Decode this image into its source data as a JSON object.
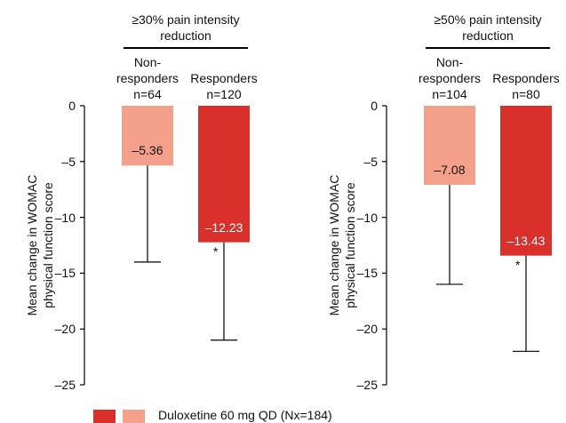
{
  "chart_data": [
    {
      "type": "bar",
      "title": "≥30% pain intensity reduction",
      "categories": [
        "Non-responders",
        "Responders"
      ],
      "sample_sizes": [
        "n=64",
        "n=120"
      ],
      "values": [
        -5.36,
        -12.23
      ],
      "value_labels": [
        "–5.36",
        "–12.23"
      ],
      "errors": [
        8.64,
        8.77
      ],
      "significance": [
        null,
        "*"
      ],
      "colors": [
        "#f5a08b",
        "#d9302c"
      ],
      "ylabel": "Mean change in WOMAC physical function score",
      "ylim": [
        -25,
        0
      ],
      "yticks": [
        0,
        {
          "value": -5,
          "label": "–5"
        },
        {
          "value": -10,
          "label": "–10"
        },
        {
          "value": -15,
          "label": "–15"
        },
        {
          "value": -20,
          "label": "–20"
        },
        {
          "value": -25,
          "label": "–25"
        }
      ]
    },
    {
      "type": "bar",
      "title": "≥50% pain intensity reduction",
      "categories": [
        "Non-responders",
        "Responders"
      ],
      "sample_sizes": [
        "n=104",
        "n=80"
      ],
      "values": [
        -7.08,
        -13.43
      ],
      "value_labels": [
        "–7.08",
        "–13.43"
      ],
      "errors": [
        8.92,
        8.57
      ],
      "significance": [
        null,
        "*"
      ],
      "colors": [
        "#f5a08b",
        "#d9302c"
      ],
      "ylabel": "Mean change in WOMAC physical function score",
      "ylim": [
        -25,
        0
      ],
      "yticks": [
        0,
        {
          "value": -5,
          "label": "–5"
        },
        {
          "value": -10,
          "label": "–10"
        },
        {
          "value": -15,
          "label": "–15"
        },
        {
          "value": -20,
          "label": "–20"
        },
        {
          "value": -25,
          "label": "–25"
        }
      ]
    }
  ],
  "legend": {
    "label": "Duloxetine 60 mg QD (Nx=184)",
    "colors": [
      "#d9302c",
      "#f5a08b"
    ]
  }
}
